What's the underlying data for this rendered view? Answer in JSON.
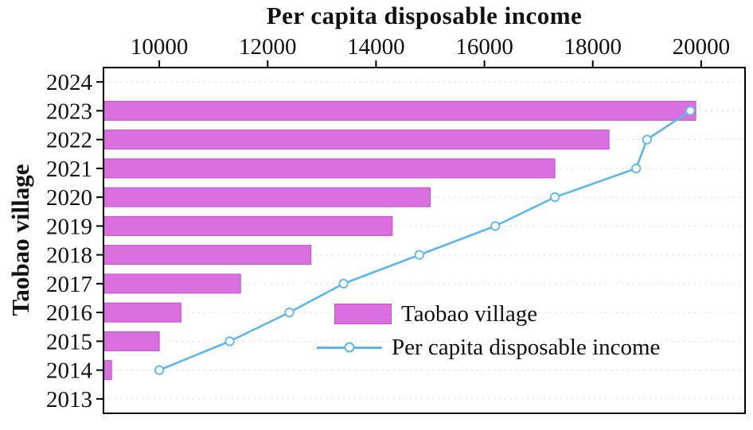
{
  "chart_data": {
    "type": "bar",
    "title": "Per capita disposable income",
    "y_axis_label": "Taobao village",
    "x_axis": {
      "position": "top",
      "min": 8970,
      "max": 20810,
      "ticks": [
        10000,
        12000,
        14000,
        16000,
        18000,
        20000
      ]
    },
    "categories": [
      "2024",
      "2023",
      "2022",
      "2021",
      "2020",
      "2019",
      "2018",
      "2017",
      "2016",
      "2015",
      "2014",
      "2013"
    ],
    "series": [
      {
        "name": "Taobao village",
        "type": "bar",
        "color": "#da6fe0",
        "border_color": "#bf52c5",
        "values": [
          null,
          19900,
          18300,
          17300,
          15000,
          14300,
          12800,
          11500,
          10400,
          10000,
          9120,
          null
        ]
      },
      {
        "name": "Per capita disposable income",
        "type": "line",
        "color": "#5fb6e8",
        "marker": "circle-open",
        "marker_fill": "#ffffff",
        "values": [
          null,
          19800,
          19000,
          18800,
          17300,
          16200,
          14800,
          13400,
          12400,
          11300,
          10000,
          null
        ]
      }
    ],
    "legend": {
      "position": "inside-right-middle",
      "items": [
        {
          "label": "Taobao village"
        },
        {
          "label": "Per capita disposable income"
        }
      ]
    },
    "grid": {
      "horizontal_dotted": true
    },
    "axis_color": "#000000",
    "text_color": "#111111"
  }
}
